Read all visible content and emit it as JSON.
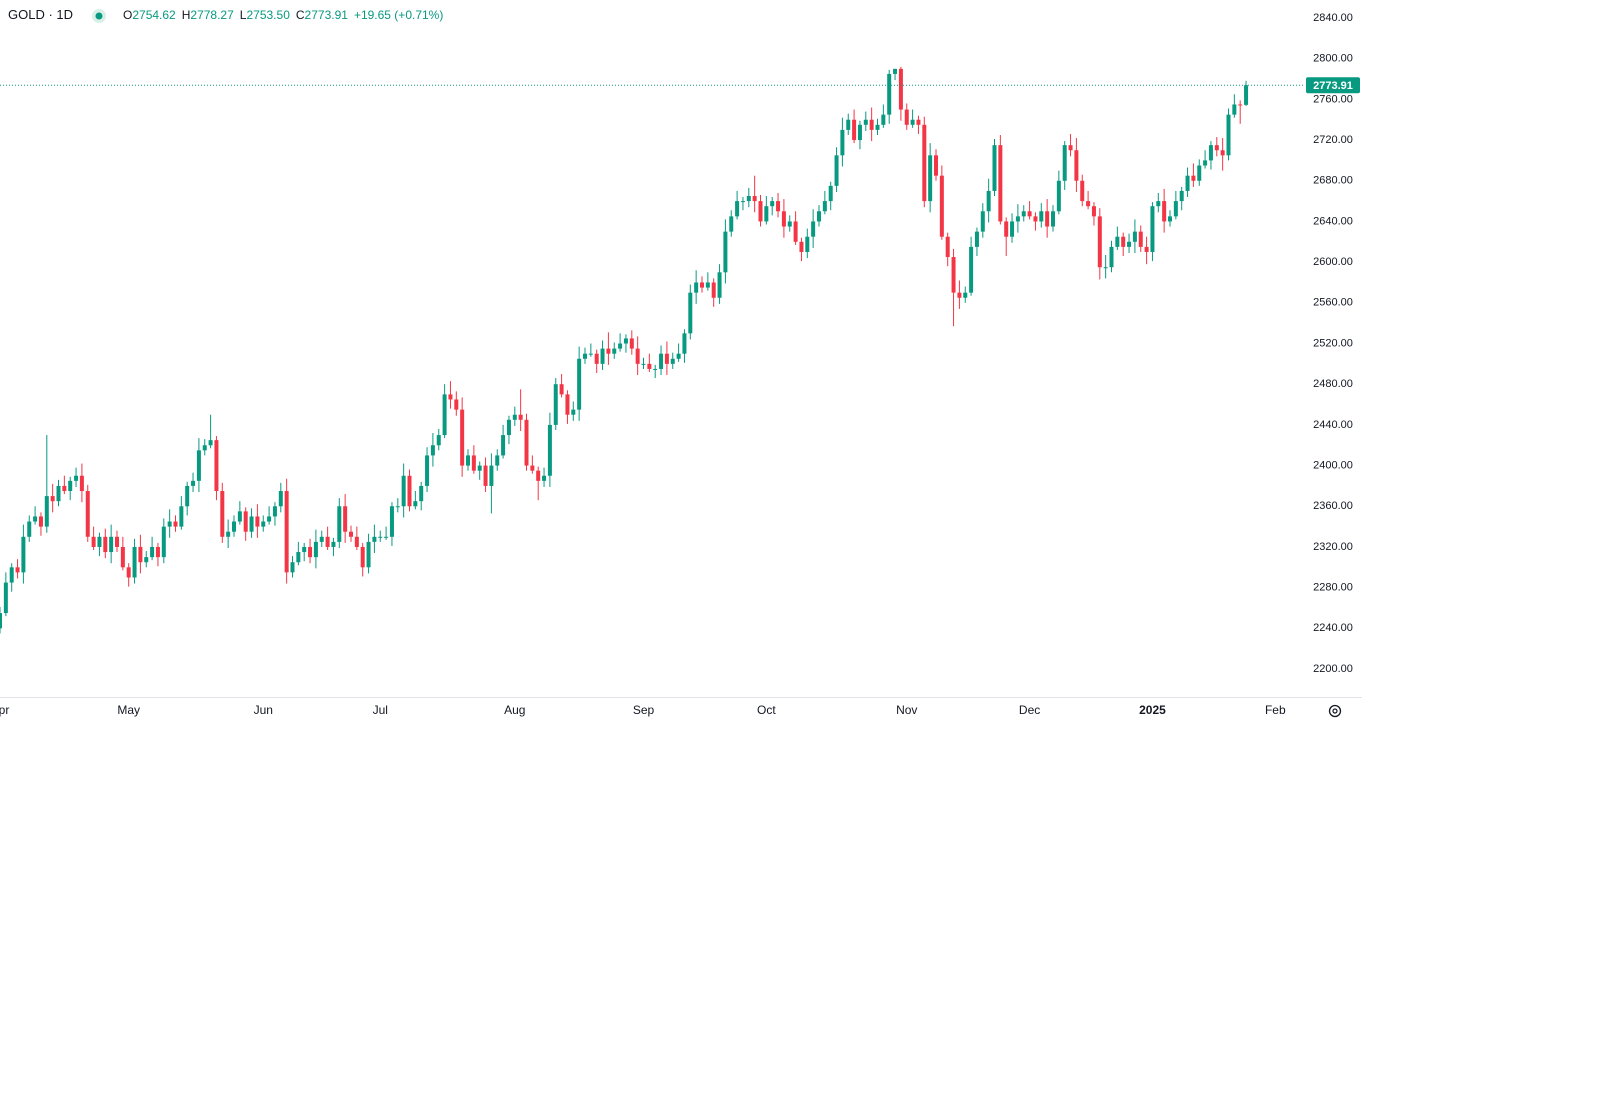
{
  "header": {
    "symbol": "GOLD · 1D",
    "labels": [
      "O",
      "H",
      "L",
      "C"
    ],
    "open": "2754.62",
    "high": "2778.27",
    "low": "2753.50",
    "close": "2773.91",
    "change": "+19.65 (+0.71%)"
  },
  "chart_data": {
    "type": "candlestick",
    "up_color": "#089981",
    "down_color": "#f23645",
    "ylim": [
      2172.5,
      2857.7
    ],
    "yticks": [
      {
        "value": 2200,
        "label": "2200.00"
      },
      {
        "value": 2240,
        "label": "2240.00"
      },
      {
        "value": 2280,
        "label": "2280.00"
      },
      {
        "value": 2320,
        "label": "2320.00"
      },
      {
        "value": 2360,
        "label": "2360.00"
      },
      {
        "value": 2400,
        "label": "2400.00"
      },
      {
        "value": 2440,
        "label": "2440.00"
      },
      {
        "value": 2480,
        "label": "2480.00"
      },
      {
        "value": 2520,
        "label": "2520.00"
      },
      {
        "value": 2560,
        "label": "2560.00"
      },
      {
        "value": 2600,
        "label": "2600.00"
      },
      {
        "value": 2640,
        "label": "2640.00"
      },
      {
        "value": 2680,
        "label": "2680.00"
      },
      {
        "value": 2720,
        "label": "2720.00"
      },
      {
        "value": 2760,
        "label": "2760.00"
      },
      {
        "value": 2800,
        "label": "2800.00"
      },
      {
        "value": 2840,
        "label": "2840.00"
      }
    ],
    "categories": [
      "Apr",
      null,
      null,
      null,
      null,
      null,
      null,
      null,
      null,
      null,
      null,
      null,
      null,
      null,
      null,
      null,
      null,
      null,
      null,
      null,
      null,
      null,
      "May",
      null,
      null,
      null,
      null,
      null,
      null,
      null,
      null,
      null,
      null,
      null,
      null,
      null,
      null,
      null,
      null,
      null,
      null,
      null,
      null,
      null,
      null,
      "Jun",
      null,
      null,
      null,
      null,
      null,
      null,
      null,
      null,
      null,
      null,
      null,
      null,
      null,
      null,
      null,
      null,
      null,
      null,
      null,
      "Jul",
      null,
      null,
      null,
      null,
      null,
      null,
      null,
      null,
      null,
      null,
      null,
      null,
      null,
      null,
      null,
      null,
      null,
      null,
      null,
      null,
      null,
      null,
      "Aug",
      null,
      null,
      null,
      null,
      null,
      null,
      null,
      null,
      null,
      null,
      null,
      null,
      null,
      null,
      null,
      null,
      null,
      null,
      null,
      null,
      null,
      "Sep",
      null,
      null,
      null,
      null,
      null,
      null,
      null,
      null,
      null,
      null,
      null,
      null,
      null,
      null,
      null,
      null,
      null,
      null,
      null,
      null,
      "Oct",
      null,
      null,
      null,
      null,
      null,
      null,
      null,
      null,
      null,
      null,
      null,
      null,
      null,
      null,
      null,
      null,
      null,
      null,
      null,
      null,
      null,
      null,
      null,
      "Nov",
      null,
      null,
      null,
      null,
      null,
      null,
      null,
      null,
      null,
      null,
      null,
      null,
      null,
      null,
      null,
      null,
      null,
      null,
      null,
      null,
      "Dec",
      null,
      null,
      null,
      null,
      null,
      null,
      null,
      null,
      null,
      null,
      null,
      null,
      null,
      null,
      null,
      null,
      null,
      null,
      null,
      null,
      "2025",
      null,
      null,
      null,
      null,
      null,
      null,
      null,
      null,
      null,
      null,
      null,
      null,
      null,
      null,
      null,
      null,
      null,
      null,
      null,
      null,
      "Feb"
    ],
    "open": [
      2240,
      2255,
      2285,
      2300,
      2295,
      2330,
      2345,
      2350,
      2340,
      2370,
      2365,
      2380,
      2375,
      2385,
      2390,
      2375,
      2330,
      2320,
      2330,
      2315,
      2330,
      2320,
      2300,
      2290,
      2320,
      2305,
      2310,
      2320,
      2310,
      2340,
      2345,
      2340,
      2360,
      2380,
      2385,
      2415,
      2420,
      2425,
      2375,
      2330,
      2335,
      2345,
      2355,
      2335,
      2350,
      2340,
      2345,
      2350,
      2360,
      2375,
      2295,
      2305,
      2315,
      2320,
      2310,
      2325,
      2330,
      2320,
      2325,
      2360,
      2335,
      2330,
      2320,
      2300,
      2325,
      2330,
      2330,
      2330,
      2360,
      2360,
      2390,
      2360,
      2365,
      2380,
      2410,
      2420,
      2430,
      2470,
      2465,
      2455,
      2400,
      2410,
      2395,
      2400,
      2380,
      2400,
      2410,
      2430,
      2445,
      2450,
      2445,
      2400,
      2395,
      2385,
      2390,
      2440,
      2480,
      2470,
      2450,
      2455,
      2505,
      2510,
      2510,
      2500,
      2515,
      2510,
      2515,
      2520,
      2525,
      2515,
      2500,
      2500,
      2495,
      2495,
      2510,
      2500,
      2505,
      2510,
      2530,
      2570,
      2580,
      2575,
      2580,
      2565,
      2590,
      2630,
      2645,
      2660,
      2660,
      2665,
      2660,
      2640,
      2655,
      2660,
      2650,
      2635,
      2640,
      2620,
      2610,
      2625,
      2640,
      2650,
      2660,
      2675,
      2705,
      2730,
      2740,
      2720,
      2735,
      2740,
      2730,
      2735,
      2745,
      2785,
      2790,
      2750,
      2735,
      2740,
      2735,
      2660,
      2705,
      2685,
      2625,
      2605,
      2570,
      2565,
      2570,
      2615,
      2630,
      2650,
      2670,
      2715,
      2640,
      2625,
      2640,
      2645,
      2650,
      2645,
      2640,
      2650,
      2635,
      2650,
      2680,
      2715,
      2710,
      2680,
      2660,
      2655,
      2645,
      2595,
      2595,
      2615,
      2625,
      2615,
      2620,
      2630,
      2615,
      2610,
      2655,
      2660,
      2640,
      2645,
      2660,
      2670,
      2685,
      2680,
      2695,
      2700,
      2715,
      2710,
      2705,
      2745,
      2755,
      2754.62,
      null,
      null,
      null,
      null,
      null
    ],
    "high": [
      2261,
      2295,
      2304,
      2308,
      2342,
      2351,
      2360,
      2354,
      2430,
      2382,
      2386,
      2390,
      2389,
      2398,
      2402,
      2381,
      2340,
      2334,
      2338,
      2342,
      2336,
      2330,
      2304,
      2328,
      2332,
      2316,
      2330,
      2324,
      2348,
      2357,
      2351,
      2370,
      2384,
      2393,
      2427,
      2426,
      2450,
      2429,
      2383,
      2347,
      2351,
      2365,
      2359,
      2358,
      2362,
      2351,
      2360,
      2364,
      2383,
      2387,
      2311,
      2325,
      2324,
      2328,
      2337,
      2336,
      2340,
      2329,
      2368,
      2372,
      2341,
      2340,
      2324,
      2333,
      2342,
      2336,
      2340,
      2364,
      2368,
      2402,
      2396,
      2375,
      2384,
      2418,
      2432,
      2436,
      2480,
      2483,
      2473,
      2467,
      2416,
      2420,
      2404,
      2408,
      2412,
      2416,
      2440,
      2449,
      2458,
      2475,
      2451,
      2410,
      2399,
      2398,
      2452,
      2486,
      2490,
      2474,
      2463,
      2517,
      2516,
      2520,
      2514,
      2523,
      2531,
      2521,
      2530,
      2529,
      2533,
      2527,
      2506,
      2510,
      2499,
      2518,
      2522,
      2511,
      2520,
      2534,
      2578,
      2592,
      2586,
      2590,
      2584,
      2598,
      2642,
      2651,
      2670,
      2664,
      2673,
      2685,
      2666,
      2665,
      2664,
      2668,
      2662,
      2646,
      2650,
      2624,
      2633,
      2652,
      2656,
      2670,
      2679,
      2713,
      2742,
      2746,
      2750,
      2739,
      2748,
      2752,
      2741,
      2755,
      2789,
      2790,
      2792,
      2756,
      2750,
      2744,
      2743,
      2717,
      2711,
      2695,
      2629,
      2613,
      2582,
      2576,
      2625,
      2634,
      2658,
      2682,
      2721,
      2725,
      2644,
      2648,
      2657,
      2656,
      2660,
      2649,
      2658,
      2662,
      2656,
      2690,
      2719,
      2726,
      2722,
      2686,
      2670,
      2659,
      2653,
      2607,
      2621,
      2635,
      2629,
      2628,
      2642,
      2636,
      2625,
      2659,
      2668,
      2672,
      2651,
      2670,
      2674,
      2693,
      2697,
      2701,
      2710,
      2719,
      2723,
      2722,
      2751,
      2765,
      2759,
      2778.27,
      null,
      null,
      null,
      null,
      null
    ],
    "low": [
      2235,
      2252,
      2276,
      2289,
      2284,
      2325,
      2342,
      2331,
      2334,
      2354,
      2360,
      2372,
      2366,
      2379,
      2364,
      2325,
      2317,
      2311,
      2309,
      2304,
      2315,
      2297,
      2281,
      2284,
      2294,
      2300,
      2307,
      2301,
      2304,
      2329,
      2335,
      2337,
      2351,
      2374,
      2374,
      2410,
      2417,
      2366,
      2324,
      2319,
      2330,
      2342,
      2326,
      2329,
      2329,
      2335,
      2342,
      2341,
      2354,
      2284,
      2290,
      2302,
      2306,
      2304,
      2299,
      2320,
      2317,
      2311,
      2319,
      2324,
      2325,
      2317,
      2291,
      2294,
      2314,
      2325,
      2327,
      2321,
      2354,
      2349,
      2355,
      2357,
      2356,
      2374,
      2399,
      2415,
      2427,
      2456,
      2449,
      2389,
      2395,
      2392,
      2386,
      2374,
      2353,
      2395,
      2407,
      2421,
      2439,
      2434,
      2395,
      2392,
      2366,
      2379,
      2379,
      2435,
      2467,
      2441,
      2444,
      2444,
      2500,
      2507,
      2491,
      2494,
      2499,
      2505,
      2512,
      2511,
      2509,
      2489,
      2495,
      2492,
      2486,
      2489,
      2489,
      2495,
      2502,
      2501,
      2524,
      2559,
      2570,
      2572,
      2556,
      2559,
      2579,
      2625,
      2642,
      2651,
      2654,
      2649,
      2635,
      2637,
      2646,
      2644,
      2624,
      2630,
      2617,
      2601,
      2604,
      2614,
      2635,
      2647,
      2651,
      2669,
      2694,
      2725,
      2717,
      2711,
      2729,
      2719,
      2725,
      2732,
      2736,
      2779,
      2739,
      2730,
      2732,
      2726,
      2654,
      2649,
      2680,
      2622,
      2596,
      2537,
      2554,
      2560,
      2567,
      2606,
      2624,
      2639,
      2665,
      2637,
      2606,
      2619,
      2629,
      2640,
      2642,
      2631,
      2634,
      2624,
      2630,
      2647,
      2671,
      2704,
      2669,
      2655,
      2652,
      2636,
      2583,
      2584,
      2590,
      2612,
      2606,
      2609,
      2609,
      2610,
      2598,
      2601,
      2649,
      2629,
      2635,
      2642,
      2651,
      2664,
      2674,
      2675,
      2692,
      2691,
      2704,
      2690,
      2700,
      2742,
      2736,
      2753.5,
      null,
      null,
      null,
      null,
      null
    ],
    "close": [
      2255,
      2285,
      2300,
      2295,
      2330,
      2345,
      2350,
      2340,
      2370,
      2365,
      2380,
      2375,
      2385,
      2390,
      2375,
      2330,
      2320,
      2330,
      2315,
      2330,
      2320,
      2300,
      2290,
      2320,
      2305,
      2310,
      2320,
      2310,
      2340,
      2345,
      2340,
      2360,
      2380,
      2385,
      2415,
      2420,
      2425,
      2375,
      2330,
      2335,
      2345,
      2355,
      2335,
      2350,
      2340,
      2345,
      2350,
      2360,
      2375,
      2295,
      2305,
      2315,
      2320,
      2310,
      2325,
      2330,
      2320,
      2325,
      2360,
      2335,
      2330,
      2320,
      2300,
      2325,
      2330,
      2330,
      2330,
      2360,
      2360,
      2390,
      2360,
      2365,
      2380,
      2410,
      2420,
      2430,
      2470,
      2465,
      2455,
      2400,
      2410,
      2395,
      2400,
      2380,
      2400,
      2410,
      2430,
      2445,
      2450,
      2445,
      2400,
      2395,
      2385,
      2390,
      2440,
      2480,
      2470,
      2450,
      2455,
      2505,
      2510,
      2510,
      2500,
      2515,
      2510,
      2515,
      2520,
      2525,
      2515,
      2500,
      2500,
      2495,
      2495,
      2510,
      2500,
      2505,
      2510,
      2530,
      2570,
      2580,
      2575,
      2580,
      2565,
      2590,
      2630,
      2645,
      2660,
      2660,
      2665,
      2660,
      2640,
      2655,
      2660,
      2650,
      2635,
      2640,
      2620,
      2610,
      2625,
      2640,
      2650,
      2660,
      2675,
      2705,
      2730,
      2740,
      2720,
      2735,
      2740,
      2730,
      2735,
      2745,
      2785,
      2790,
      2750,
      2735,
      2740,
      2735,
      2660,
      2705,
      2685,
      2625,
      2605,
      2570,
      2565,
      2570,
      2615,
      2630,
      2650,
      2670,
      2715,
      2640,
      2625,
      2640,
      2645,
      2650,
      2645,
      2640,
      2650,
      2635,
      2650,
      2680,
      2715,
      2710,
      2680,
      2660,
      2655,
      2645,
      2595,
      2595,
      2615,
      2625,
      2615,
      2620,
      2630,
      2615,
      2610,
      2655,
      2660,
      2640,
      2645,
      2660,
      2670,
      2685,
      2680,
      2695,
      2700,
      2715,
      2710,
      2705,
      2745,
      2755,
      2754.26,
      2773.91,
      null,
      null,
      null,
      null,
      null
    ]
  }
}
